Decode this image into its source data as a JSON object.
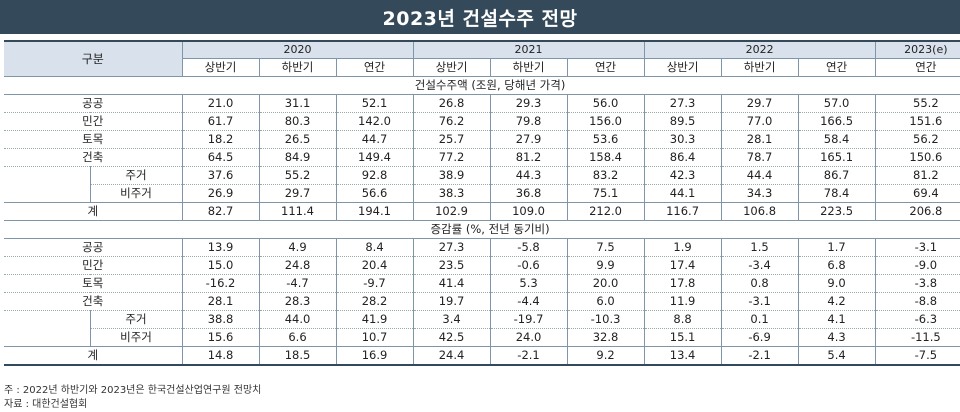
{
  "title": "2023년 건설수주 전망",
  "header": {
    "category": "구분",
    "years": [
      "2020",
      "2021",
      "2022",
      "2023(e)"
    ],
    "cols": [
      "상반기",
      "하반기",
      "연간",
      "상반기",
      "하반기",
      "연간",
      "상반기",
      "하반기",
      "연간",
      "연간"
    ]
  },
  "section1": {
    "label": "건설수주액 (조원, 당해년 가격)",
    "rows": [
      {
        "label": "공공",
        "values": [
          "21.0",
          "31.1",
          "52.1",
          "26.8",
          "29.3",
          "56.0",
          "27.3",
          "29.7",
          "57.0",
          "55.2"
        ]
      },
      {
        "label": "민간",
        "values": [
          "61.7",
          "80.3",
          "142.0",
          "76.2",
          "79.8",
          "156.0",
          "89.5",
          "77.0",
          "166.5",
          "151.6"
        ]
      },
      {
        "label": "토목",
        "values": [
          "18.2",
          "26.5",
          "44.7",
          "25.7",
          "27.9",
          "53.6",
          "30.3",
          "28.1",
          "58.4",
          "56.2"
        ]
      },
      {
        "label": "건축",
        "values": [
          "64.5",
          "84.9",
          "149.4",
          "77.2",
          "81.2",
          "158.4",
          "86.4",
          "78.7",
          "165.1",
          "150.6"
        ]
      },
      {
        "label": "주거",
        "values": [
          "37.6",
          "55.2",
          "92.8",
          "38.9",
          "44.3",
          "83.2",
          "42.3",
          "44.4",
          "86.7",
          "81.2"
        ]
      },
      {
        "label": "비주거",
        "values": [
          "26.9",
          "29.7",
          "56.6",
          "38.3",
          "36.8",
          "75.1",
          "44.1",
          "34.3",
          "78.4",
          "69.4"
        ]
      }
    ],
    "total": {
      "label": "계",
      "values": [
        "82.7",
        "111.4",
        "194.1",
        "102.9",
        "109.0",
        "212.0",
        "116.7",
        "106.8",
        "223.5",
        "206.8"
      ]
    }
  },
  "section2": {
    "label": "증감률 (%, 전년 동기비)",
    "rows": [
      {
        "label": "공공",
        "values": [
          "13.9",
          "4.9",
          "8.4",
          "27.3",
          "-5.8",
          "7.5",
          "1.9",
          "1.5",
          "1.7",
          "-3.1"
        ]
      },
      {
        "label": "민간",
        "values": [
          "15.0",
          "24.8",
          "20.4",
          "23.5",
          "-0.6",
          "9.9",
          "17.4",
          "-3.4",
          "6.8",
          "-9.0"
        ]
      },
      {
        "label": "토목",
        "values": [
          "-16.2",
          "-4.7",
          "-9.7",
          "41.4",
          "5.3",
          "20.0",
          "17.8",
          "0.8",
          "9.0",
          "-3.8"
        ]
      },
      {
        "label": "건축",
        "values": [
          "28.1",
          "28.3",
          "28.2",
          "19.7",
          "-4.4",
          "6.0",
          "11.9",
          "-3.1",
          "4.2",
          "-8.8"
        ]
      },
      {
        "label": "주거",
        "values": [
          "38.8",
          "44.0",
          "41.9",
          "3.4",
          "-19.7",
          "-10.3",
          "8.8",
          "0.1",
          "4.1",
          "-6.3"
        ]
      },
      {
        "label": "비주거",
        "values": [
          "15.6",
          "6.6",
          "10.7",
          "42.5",
          "24.0",
          "32.8",
          "15.1",
          "-6.9",
          "4.3",
          "-11.5"
        ]
      }
    ],
    "total": {
      "label": "계",
      "values": [
        "14.8",
        "18.5",
        "16.9",
        "24.4",
        "-2.1",
        "9.2",
        "13.4",
        "-2.1",
        "5.4",
        "-7.5"
      ]
    }
  },
  "notes": {
    "note1": "주 : 2022년 하반기와 2023년은 한국건설산업연구원 전망치",
    "note2": "자료 : 대한건설협회"
  }
}
